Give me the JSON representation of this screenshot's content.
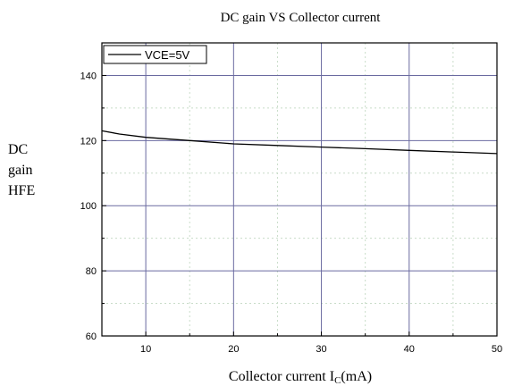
{
  "chart_data": {
    "type": "line",
    "title": "DC gain VS Collector current",
    "xlabel_prefix": "Collector current I",
    "xlabel_sub": "C",
    "xlabel_suffix": "(mA)",
    "ylabel_lines": [
      "DC",
      "gain",
      "HFE"
    ],
    "xlim": [
      5,
      50
    ],
    "ylim": [
      60,
      150
    ],
    "x_ticks": [
      10,
      20,
      30,
      40,
      50
    ],
    "y_ticks": [
      60,
      80,
      100,
      120,
      140
    ],
    "x_minor_step": 5,
    "y_minor_step": 10,
    "grid": true,
    "legend_position": "top-left",
    "series": [
      {
        "name": "VCE=5V",
        "x": [
          5,
          7,
          10,
          15,
          20,
          25,
          30,
          35,
          40,
          45,
          50
        ],
        "y": [
          123,
          122,
          121,
          120,
          119,
          118.5,
          118,
          117.5,
          117,
          116.5,
          116
        ]
      }
    ]
  },
  "colors": {
    "line": "#000000",
    "major_grid": "#6a6aa0",
    "minor_grid": "#c8dcc8",
    "axis": "#000000"
  }
}
